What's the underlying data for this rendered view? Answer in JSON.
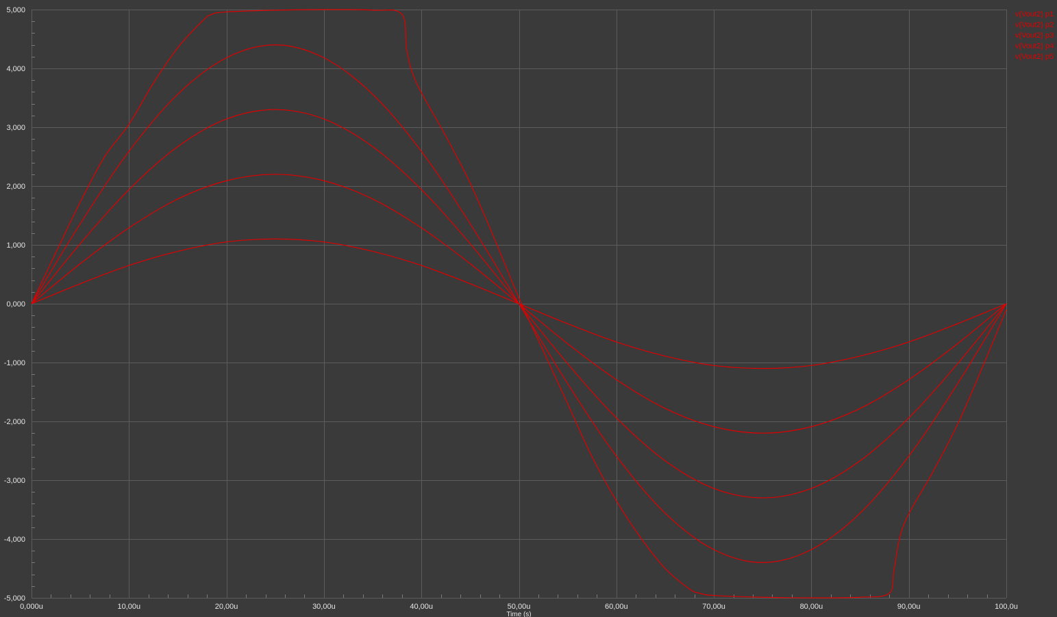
{
  "colors": {
    "background": "#3a3a3a",
    "grid": "#5c5c5c",
    "minor_tick": "#7a7a7a",
    "axis_text": "#e6e6e6",
    "trace": "#e00000"
  },
  "chart_data": {
    "type": "line",
    "title": "",
    "xlabel": "Time (s)",
    "ylabel": "",
    "xlim": [
      0,
      100
    ],
    "ylim": [
      -5,
      5
    ],
    "grid": true,
    "legend_position": "top-right",
    "x_ticks": [
      0,
      10,
      20,
      30,
      40,
      50,
      60,
      70,
      80,
      90,
      100
    ],
    "x_tick_labels": [
      "0,000u",
      "10,00u",
      "20,00u",
      "30,00u",
      "40,00u",
      "50,00u",
      "60,00u",
      "70,00u",
      "80,00u",
      "90,00u",
      "100,0u"
    ],
    "y_ticks": [
      5,
      4,
      3,
      2,
      1,
      0,
      -1,
      -2,
      -3,
      -4,
      -5
    ],
    "y_tick_labels": [
      "5,000",
      "4,000",
      "3,000",
      "2,000",
      "1,000",
      "0,000",
      "-1,000",
      "-2,000",
      "-3,000",
      "-4,000",
      "-5,000"
    ],
    "series": [
      {
        "name": "v(Vout2) p1",
        "x": [
          0,
          5,
          10,
          15,
          20,
          25,
          30,
          35,
          40,
          45,
          50,
          55,
          60,
          65,
          70,
          75,
          80,
          85,
          90,
          95,
          100
        ],
        "y": [
          0,
          0.34,
          0.65,
          0.89,
          1.05,
          1.1,
          1.05,
          0.89,
          0.65,
          0.34,
          0,
          -0.34,
          -0.65,
          -0.89,
          -1.05,
          -1.1,
          -1.05,
          -0.89,
          -0.65,
          -0.34,
          0
        ]
      },
      {
        "name": "v(Vout2) p2",
        "x": [
          0,
          5,
          10,
          15,
          20,
          25,
          30,
          35,
          40,
          45,
          50,
          55,
          60,
          65,
          70,
          75,
          80,
          85,
          90,
          95,
          100
        ],
        "y": [
          0,
          0.68,
          1.29,
          1.78,
          2.09,
          2.2,
          2.09,
          1.78,
          1.29,
          0.68,
          0,
          -0.68,
          -1.29,
          -1.78,
          -2.09,
          -2.2,
          -2.09,
          -1.78,
          -1.29,
          -0.68,
          0
        ]
      },
      {
        "name": "v(Vout2) p3",
        "x": [
          0,
          5,
          10,
          15,
          20,
          25,
          30,
          35,
          40,
          45,
          50,
          55,
          60,
          65,
          70,
          75,
          80,
          85,
          90,
          95,
          100
        ],
        "y": [
          0,
          1.02,
          1.94,
          2.67,
          3.14,
          3.3,
          3.14,
          2.67,
          1.94,
          1.02,
          0,
          -1.02,
          -1.94,
          -2.67,
          -3.14,
          -3.3,
          -3.14,
          -2.67,
          -1.94,
          -1.02,
          0
        ]
      },
      {
        "name": "v(Vout2) p4",
        "x": [
          0,
          5,
          10,
          15,
          20,
          25,
          30,
          35,
          40,
          45,
          50,
          55,
          60,
          65,
          70,
          75,
          80,
          85,
          90,
          95,
          100
        ],
        "y": [
          0,
          1.36,
          2.59,
          3.56,
          4.18,
          4.4,
          4.18,
          3.56,
          2.59,
          1.36,
          0,
          -1.36,
          -2.59,
          -3.56,
          -4.18,
          -4.4,
          -4.18,
          -3.56,
          -2.59,
          -1.36,
          0
        ]
      },
      {
        "name": "v(Vout2) p5",
        "x": [
          0,
          2.5,
          5,
          7.5,
          10,
          12.5,
          15,
          17.5,
          18.5,
          20,
          25,
          30,
          35,
          38,
          38.5,
          39.5,
          42.5,
          45,
          47.5,
          50,
          52.5,
          55,
          57.5,
          60,
          62.5,
          65,
          67.5,
          68.5,
          70,
          75,
          80,
          85,
          88,
          88.5,
          89.5,
          92.5,
          95,
          97.5,
          100
        ],
        "y": [
          0,
          0.87,
          1.73,
          2.5,
          3.05,
          3.75,
          4.35,
          4.8,
          4.92,
          4.96,
          4.99,
          5.0,
          4.99,
          4.92,
          4.3,
          3.75,
          2.85,
          2.05,
          1.1,
          0.1,
          -0.8,
          -1.7,
          -2.6,
          -3.35,
          -3.98,
          -4.5,
          -4.85,
          -4.92,
          -4.96,
          -4.99,
          -5.0,
          -4.99,
          -4.92,
          -4.5,
          -3.75,
          -2.85,
          -2.05,
          -1.1,
          -0.1
        ]
      }
    ]
  }
}
